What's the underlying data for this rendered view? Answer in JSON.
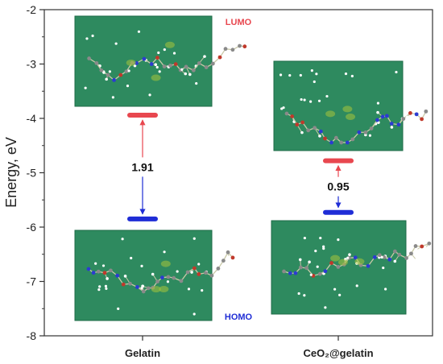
{
  "chart_data": {
    "type": "energy-level-diagram",
    "ylabel": "Energy, eV",
    "ylim": [
      -8,
      -2
    ],
    "yticks": [
      "-2",
      "-3",
      "-4",
      "-5",
      "-6",
      "-7",
      "-8"
    ],
    "categories": [
      "Gelatin",
      "CeO₂@gelatin"
    ],
    "levels": [
      {
        "category": "Gelatin",
        "LUMO": -3.94,
        "HOMO": -5.85,
        "gap": "1.91"
      },
      {
        "category": "CeO₂@gelatin",
        "LUMO": -4.78,
        "HOMO": -5.73,
        "gap": "0.95"
      }
    ],
    "annotations": {
      "lumo": "LUMO",
      "homo": "HOMO"
    },
    "colors": {
      "lumo": "#e8474f",
      "homo": "#1f2dd6",
      "panel": "#2e8a5f",
      "panel_edge": "#1e6b47",
      "axis": "#333333"
    },
    "grid": false
  }
}
